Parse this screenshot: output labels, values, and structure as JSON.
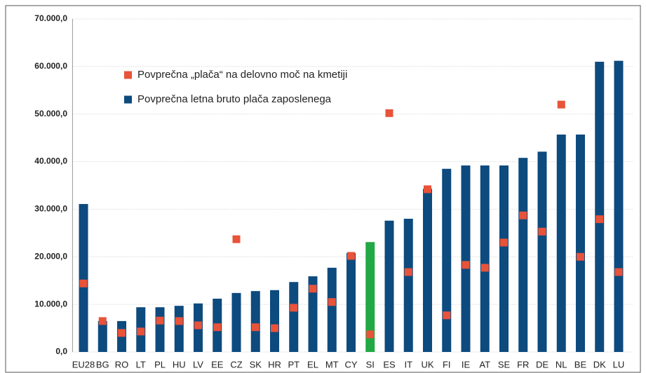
{
  "chart_data": {
    "type": "bar",
    "categories": [
      "EU28",
      "BG",
      "RO",
      "LT",
      "PL",
      "HU",
      "LV",
      "EE",
      "CZ",
      "SK",
      "HR",
      "PT",
      "EL",
      "MT",
      "CY",
      "SI",
      "ES",
      "IT",
      "UK",
      "FI",
      "IE",
      "AT",
      "SE",
      "FR",
      "DE",
      "NL",
      "BE",
      "DK",
      "LU"
    ],
    "series": [
      {
        "name": "Povprečna letna bruto plača zaposlenega",
        "type": "bar",
        "color": "#0d4a7e",
        "colors": [
          "#0d4a7e",
          "#0d4a7e",
          "#0d4a7e",
          "#0d4a7e",
          "#0d4a7e",
          "#0d4a7e",
          "#0d4a7e",
          "#0d4a7e",
          "#0d4a7e",
          "#0d4a7e",
          "#0d4a7e",
          "#0d4a7e",
          "#0d4a7e",
          "#0d4a7e",
          "#0d4a7e",
          "#22a844",
          "#0d4a7e",
          "#0d4a7e",
          "#0d4a7e",
          "#0d4a7e",
          "#0d4a7e",
          "#0d4a7e",
          "#0d4a7e",
          "#0d4a7e",
          "#0d4a7e",
          "#0d4a7e",
          "#0d4a7e",
          "#0d4a7e",
          "#0d4a7e"
        ],
        "values": [
          31100,
          6500,
          6500,
          9400,
          9400,
          9700,
          10200,
          11200,
          12400,
          12800,
          13000,
          14700,
          15900,
          17700,
          20800,
          23100,
          27600,
          28000,
          34300,
          38500,
          39200,
          39200,
          39200,
          40800,
          42100,
          45700,
          45700,
          61000,
          61200
        ]
      },
      {
        "name": "Povprečna „plača“ na delovno moč na kmetiji",
        "type": "marker",
        "color": "#e8533a",
        "values": [
          14400,
          6500,
          4000,
          4300,
          6600,
          6500,
          5600,
          5200,
          23700,
          5200,
          5000,
          9300,
          13300,
          10500,
          20200,
          3700,
          50200,
          16800,
          34200,
          7700,
          18300,
          17700,
          23000,
          28700,
          25300,
          52000,
          20000,
          27900,
          16800
        ]
      }
    ],
    "ylim": [
      0,
      70000
    ],
    "yticks": [
      {
        "value": 0,
        "label": "0,0"
      },
      {
        "value": 10000,
        "label": "10.000,0"
      },
      {
        "value": 20000,
        "label": "20.000,0"
      },
      {
        "value": 30000,
        "label": "30.000,0"
      },
      {
        "value": 40000,
        "label": "40.000,0"
      },
      {
        "value": 50000,
        "label": "50.000,0"
      },
      {
        "value": 60000,
        "label": "60.000,0"
      },
      {
        "value": 70000,
        "label": "70.000,0"
      }
    ],
    "grid": true
  }
}
